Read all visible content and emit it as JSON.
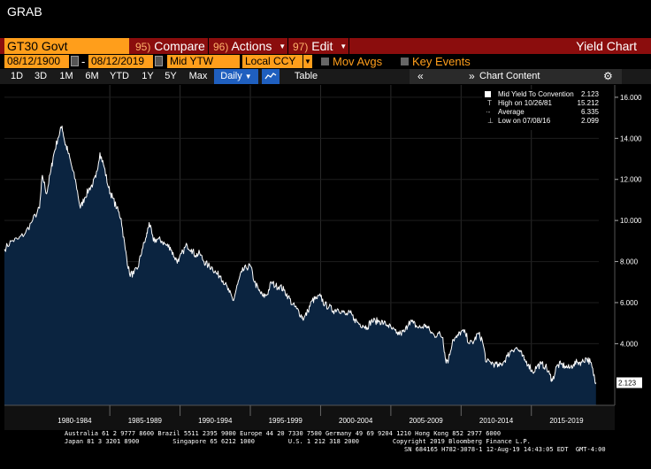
{
  "window_title": "GRAB",
  "toolbar": {
    "ticker": "GT30 Govt",
    "compare": {
      "num": "95)",
      "label": "Compare"
    },
    "actions": {
      "num": "96)",
      "label": "Actions"
    },
    "edit": {
      "num": "97)",
      "label": "Edit"
    },
    "chart_title": "Yield Chart"
  },
  "params": {
    "start_date": "08/12/1900",
    "end_date": "08/12/2019",
    "dash": "-",
    "field": "Mid YTW",
    "currency": "Local CCY",
    "mov_avgs": "Mov Avgs",
    "key_events": "Key Events"
  },
  "periods": [
    "1D",
    "3D",
    "1M",
    "6M",
    "YTD",
    "1Y",
    "5Y",
    "Max"
  ],
  "frequency": "Daily",
  "table_label": "Table",
  "chart_content_label": "Chart Content",
  "legend": {
    "series": {
      "label": "Mid Yield To Convention",
      "value": "2.123"
    },
    "high": {
      "label": "High on 10/26/81",
      "value": "15.212"
    },
    "average": {
      "label": "Average",
      "value": "6.335"
    },
    "low": {
      "label": "Low on 07/08/16",
      "value": "2.099"
    }
  },
  "chart_data": {
    "type": "area",
    "title": "",
    "xlabel": "",
    "ylabel": "",
    "ylim": [
      1.0,
      16.6
    ],
    "yticks": [
      "16.000",
      "14.000",
      "12.000",
      "10.000",
      "8.000",
      "6.000",
      "4.000"
    ],
    "ytick_values": [
      16,
      14,
      12,
      10,
      8,
      6,
      4
    ],
    "last_value_label": "2.123",
    "xlim": [
      1977.5,
      2019.8
    ],
    "xtick_labels": [
      "1980-1984",
      "1985-1989",
      "1990-1994",
      "1995-1999",
      "2000-2004",
      "2005-2009",
      "2010-2014",
      "2015-2019"
    ],
    "xtick_positions": [
      1982.5,
      1987.5,
      1992.5,
      1997.5,
      2002.5,
      2007.5,
      2012.5,
      2017.5
    ],
    "series": [
      {
        "x": [
          1977.5,
          1978.0,
          1978.5,
          1979.0,
          1979.5,
          1980.0,
          1980.2,
          1980.5,
          1980.8,
          1981.0,
          1981.3,
          1981.6,
          1981.8,
          1982.0,
          1982.3,
          1982.6,
          1982.9,
          1983.2,
          1983.5,
          1983.8,
          1984.0,
          1984.3,
          1984.6,
          1984.9,
          1985.2,
          1985.5,
          1985.8,
          1986.1,
          1986.4,
          1986.7,
          1987.0,
          1987.3,
          1987.6,
          1987.8,
          1988.1,
          1988.4,
          1988.7,
          1989.0,
          1989.3,
          1989.6,
          1989.9,
          1990.2,
          1990.5,
          1990.8,
          1991.1,
          1991.4,
          1991.7,
          1992.0,
          1992.3,
          1992.6,
          1992.9,
          1993.2,
          1993.5,
          1993.8,
          1994.1,
          1994.4,
          1994.7,
          1995.0,
          1995.3,
          1995.6,
          1995.9,
          1996.2,
          1996.5,
          1996.8,
          1997.1,
          1997.4,
          1997.7,
          1998.0,
          1998.3,
          1998.6,
          1998.8,
          1999.1,
          1999.4,
          1999.7,
          2000.0,
          2000.3,
          2000.6,
          2000.9,
          2001.2,
          2001.5,
          2001.8,
          2002.1,
          2002.4,
          2002.7,
          2003.0,
          2003.3,
          2003.6,
          2003.9,
          2004.2,
          2004.5,
          2004.8,
          2005.1,
          2005.4,
          2005.7,
          2006.0,
          2006.3,
          2006.6,
          2006.9,
          2007.2,
          2007.5,
          2007.8,
          2008.1,
          2008.4,
          2008.7,
          2008.9,
          2009.1,
          2009.4,
          2009.7,
          2010.0,
          2010.3,
          2010.6,
          2010.9,
          2011.2,
          2011.5,
          2011.8,
          2012.1,
          2012.4,
          2012.7,
          2013.0,
          2013.3,
          2013.6,
          2013.9,
          2014.2,
          2014.5,
          2014.8,
          2015.1,
          2015.4,
          2015.7,
          2016.0,
          2016.3,
          2016.5,
          2016.8,
          2017.1,
          2017.4,
          2017.7,
          2018.0,
          2018.3,
          2018.6,
          2018.9,
          2019.2,
          2019.4,
          2019.6
        ],
        "y": [
          8.6,
          9.0,
          9.1,
          9.4,
          10.0,
          10.6,
          12.2,
          11.3,
          12.4,
          13.2,
          14.0,
          14.6,
          13.8,
          13.4,
          12.6,
          11.8,
          10.6,
          11.1,
          11.5,
          11.8,
          12.1,
          13.3,
          12.6,
          11.6,
          11.1,
          10.6,
          10.1,
          8.6,
          7.4,
          7.4,
          7.7,
          8.6,
          9.2,
          9.9,
          9.0,
          9.1,
          9.0,
          8.8,
          8.7,
          8.2,
          8.0,
          8.5,
          8.8,
          8.6,
          8.3,
          8.4,
          8.0,
          7.8,
          7.7,
          7.4,
          7.3,
          6.9,
          6.5,
          6.1,
          6.9,
          7.5,
          7.7,
          7.8,
          7.0,
          6.6,
          6.3,
          6.4,
          7.0,
          6.8,
          6.8,
          6.6,
          6.3,
          5.9,
          5.7,
          5.4,
          5.2,
          5.6,
          6.1,
          6.2,
          6.3,
          5.9,
          5.8,
          5.6,
          5.7,
          5.6,
          5.4,
          5.5,
          5.2,
          5.0,
          4.9,
          4.8,
          5.1,
          5.1,
          5.1,
          5.0,
          4.9,
          4.7,
          4.5,
          4.5,
          4.6,
          5.1,
          5.0,
          4.8,
          4.8,
          4.9,
          4.6,
          4.4,
          4.5,
          4.3,
          3.2,
          3.2,
          4.2,
          4.3,
          4.6,
          4.5,
          4.0,
          4.1,
          4.5,
          4.2,
          3.1,
          3.1,
          3.0,
          2.9,
          3.1,
          3.4,
          3.7,
          3.8,
          3.6,
          3.2,
          3.0,
          2.6,
          2.9,
          3.0,
          2.9,
          2.5,
          2.2,
          2.9,
          3.0,
          2.9,
          2.8,
          3.0,
          3.1,
          3.1,
          3.3,
          3.1,
          2.6,
          2.1
        ]
      }
    ]
  },
  "footer": {
    "line1": "Australia 61 2 9777 8600 Brazil 5511 2395 9000 Europe 44 20 7330 7500 Germany 49 69 9204 1210 Hong Kong 852 2977 6000",
    "line2": "Japan 81 3 3201 8900         Singapore 65 6212 1000         U.S. 1 212 318 2000         Copyright 2019 Bloomberg Finance L.P.",
    "line3": "SN 684165 H782-3078-1 12-Aug-19 14:43:05 EDT  GMT-4:00"
  },
  "colors": {
    "orange": "#ff9e1b",
    "dark_red": "#8b0d0d",
    "area_fill": "#0b2440",
    "line": "#ffffff",
    "accent_blue": "#1f5fbf"
  }
}
